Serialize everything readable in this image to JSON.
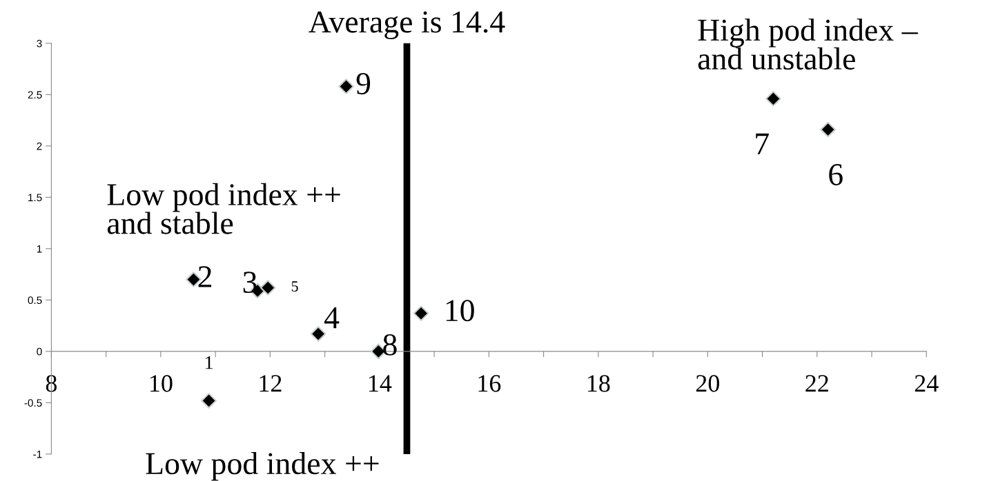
{
  "chart_data": {
    "type": "scatter",
    "x": [
      10.88,
      10.6,
      11.77,
      12.88,
      11.96,
      22.2,
      21.2,
      13.98,
      13.39,
      14.76
    ],
    "values": [
      -0.48,
      0.7,
      0.59,
      0.17,
      0.62,
      2.16,
      2.46,
      0,
      2.58,
      0.37
    ],
    "color": "#000000",
    "marker": "diamond",
    "grid": false,
    "xlim": [
      8,
      24
    ],
    "ylim": [
      -1,
      3
    ],
    "xticks": [
      8,
      {
        "value": 9,
        "label": null
      },
      10,
      {
        "value": 11,
        "label": null
      },
      12,
      {
        "value": 13,
        "label": null
      },
      14,
      {
        "value": 15,
        "label": null
      },
      16,
      {
        "value": 17,
        "label": null
      },
      18,
      {
        "value": 19,
        "label": null
      },
      20,
      {
        "value": 21,
        "label": null
      },
      22,
      {
        "value": 23,
        "label": null
      },
      24
    ],
    "yticks": [
      -1,
      -0.5,
      0,
      0.5,
      1,
      1.5,
      2,
      2.5,
      3
    ],
    "ref_lines": [
      {
        "axis": "x",
        "value": 14.5,
        "label": "Average is 14.4",
        "color": "#000000"
      }
    ],
    "annotations": [
      {
        "text": "1",
        "x": 10.88,
        "y": -0.48
      },
      {
        "text": "2",
        "x": 10.6,
        "y": 0.7
      },
      {
        "text": "3",
        "x": 11.77,
        "y": 0.59
      },
      {
        "text": "4",
        "x": 12.88,
        "y": 0.17
      },
      {
        "text": "5",
        "x": 11.96,
        "y": 0.62
      },
      {
        "text": "6",
        "x": 22.2,
        "y": 2.16
      },
      {
        "text": "7",
        "x": 21.2,
        "y": 2.46
      },
      {
        "text": "8",
        "x": 13.98,
        "y": 0
      },
      {
        "text": "9",
        "x": 13.39,
        "y": 2.58
      },
      {
        "text": "10",
        "x": 14.76,
        "y": 0.37
      },
      "High pod index –\nand unstable",
      "Low pod index ++\nand stable",
      "Low pod index ++"
    ]
  }
}
